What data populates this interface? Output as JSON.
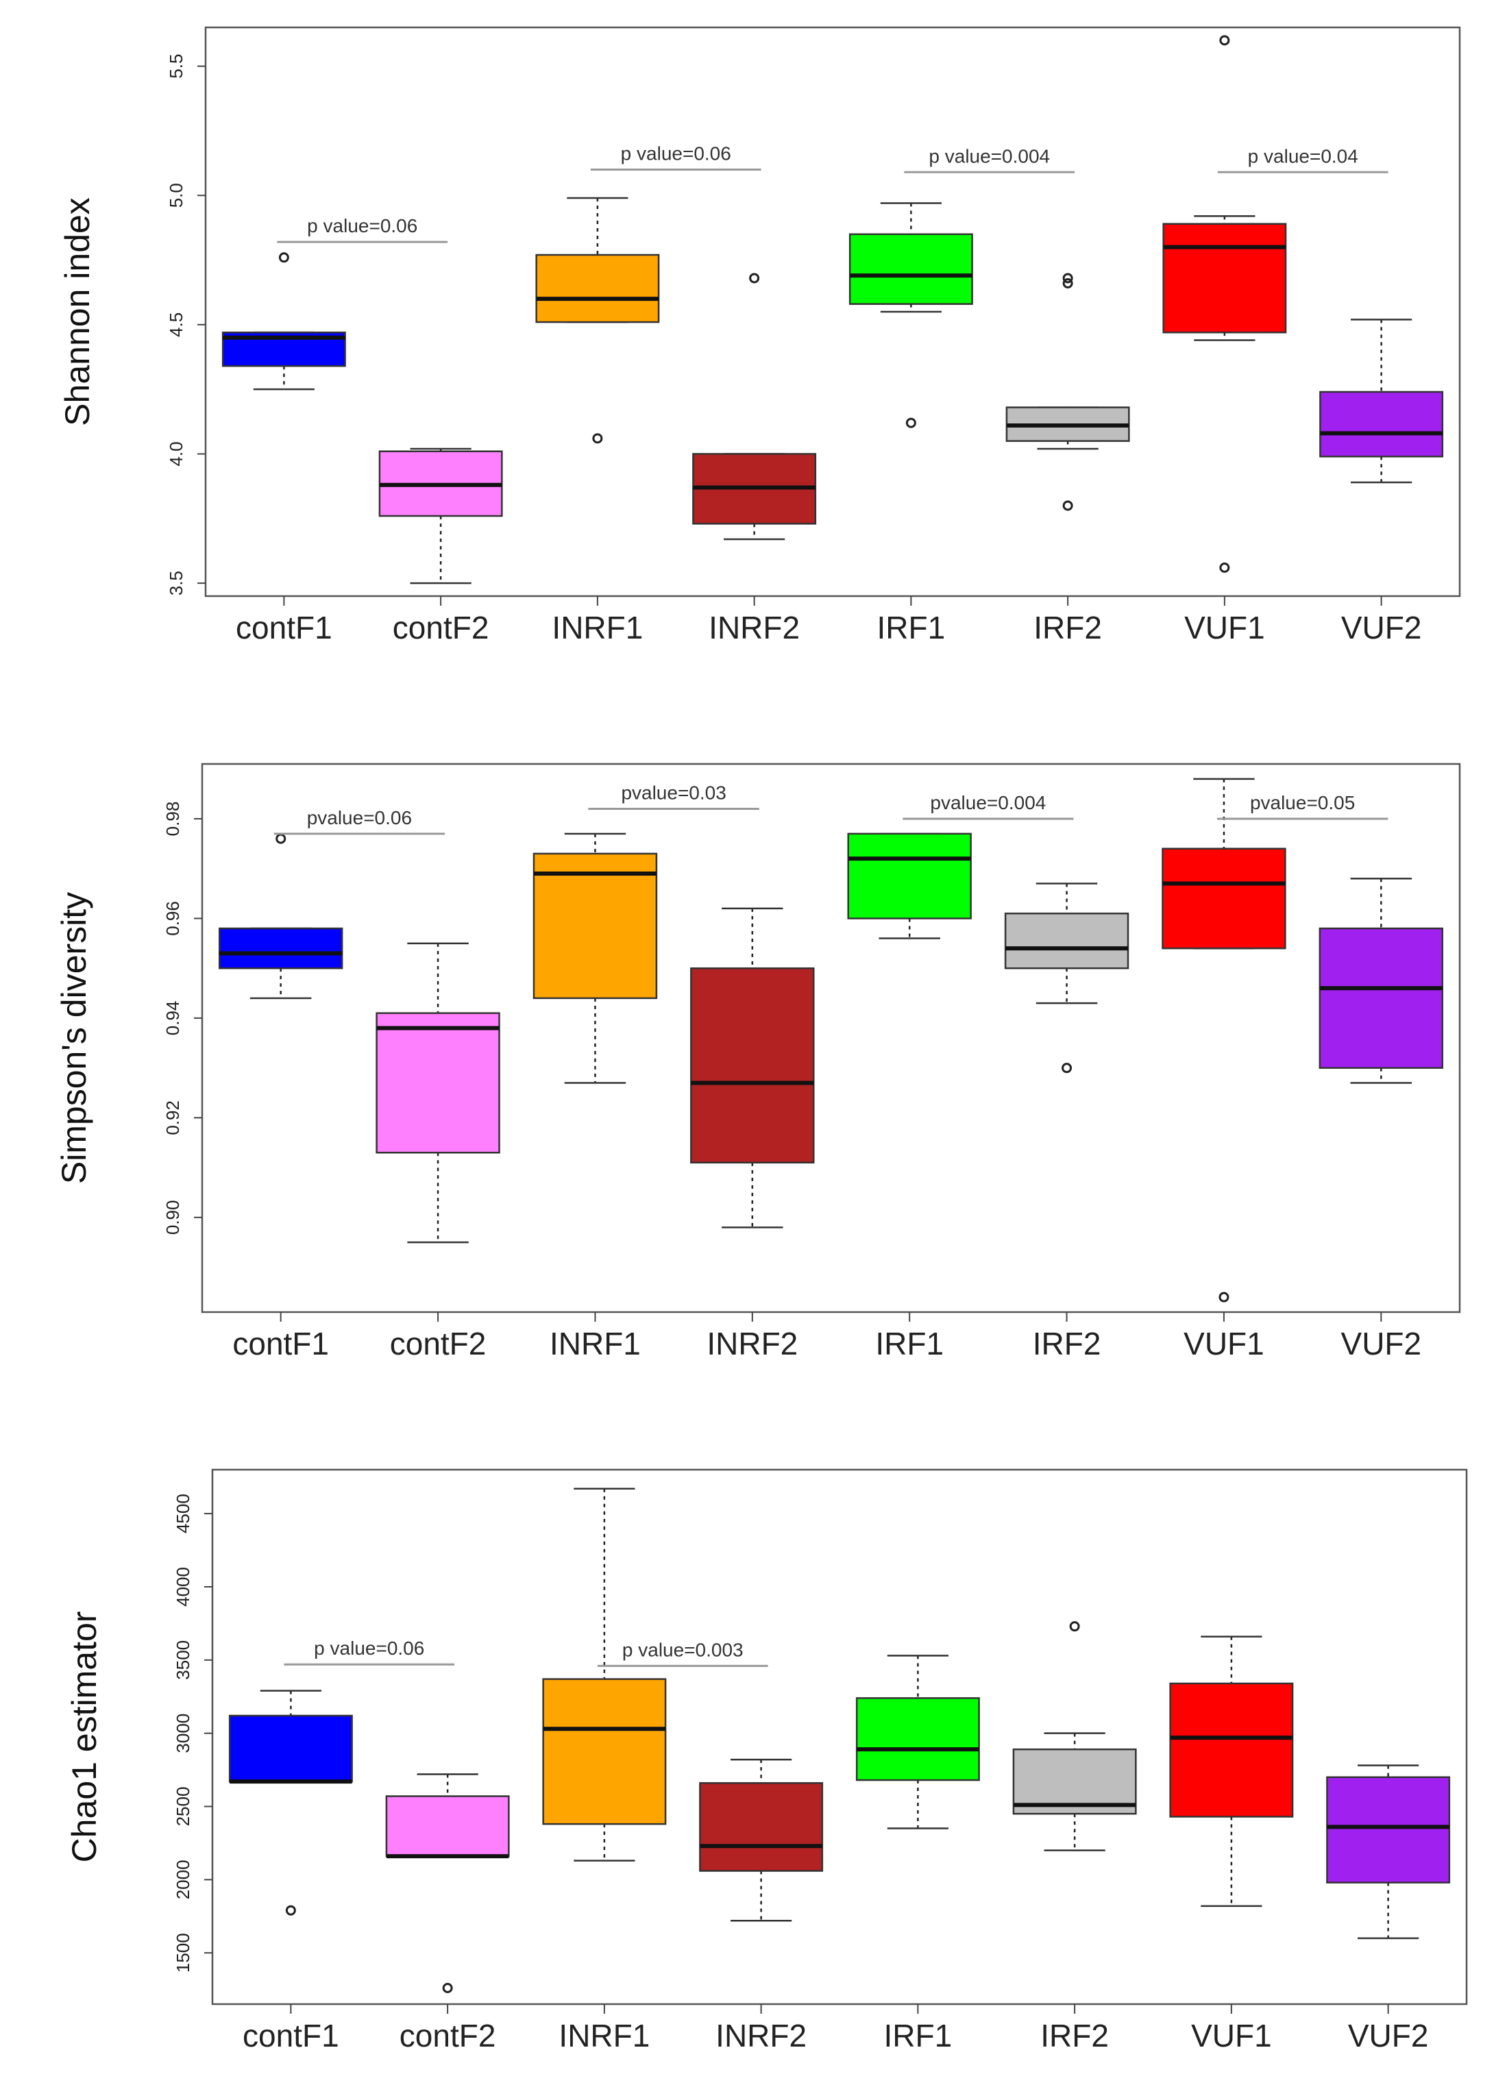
{
  "chart_data": [
    {
      "type": "box",
      "ylabel": "Shannon index",
      "ylim": [
        3.45,
        5.65
      ],
      "yticks": [
        3.5,
        4.0,
        4.5,
        5.0,
        5.5
      ],
      "ytick_labels": [
        "3.5",
        "4.0",
        "4.5",
        "5.0",
        "5.5"
      ],
      "categories": [
        "contF1",
        "contF2",
        "INRF1",
        "INRF2",
        "IRF1",
        "IRF2",
        "VUF1",
        "VUF2"
      ],
      "colors": [
        "#0000ff",
        "#ff80ff",
        "#ffa500",
        "#b22222",
        "#00ff00",
        "#bebebe",
        "#ff0000",
        "#a020f0"
      ],
      "boxes": [
        {
          "min": 4.25,
          "q1": 4.34,
          "median": 4.45,
          "q3": 4.47,
          "max": 4.47,
          "outliers": [
            4.76
          ]
        },
        {
          "min": 3.5,
          "q1": 3.76,
          "median": 3.88,
          "q3": 4.01,
          "max": 4.02,
          "outliers": []
        },
        {
          "min": 4.51,
          "q1": 4.51,
          "median": 4.6,
          "q3": 4.77,
          "max": 4.99,
          "outliers": [
            4.06
          ]
        },
        {
          "min": 3.67,
          "q1": 3.73,
          "median": 3.87,
          "q3": 4.0,
          "max": 4.0,
          "outliers": [
            4.68
          ]
        },
        {
          "min": 4.55,
          "q1": 4.58,
          "median": 4.69,
          "q3": 4.85,
          "max": 4.97,
          "outliers": [
            4.12
          ]
        },
        {
          "min": 4.02,
          "q1": 4.05,
          "median": 4.11,
          "q3": 4.18,
          "max": 4.18,
          "outliers": [
            4.68,
            4.66,
            3.8
          ]
        },
        {
          "min": 4.44,
          "q1": 4.47,
          "median": 4.8,
          "q3": 4.89,
          "max": 4.92,
          "outliers": [
            5.6,
            3.56
          ]
        },
        {
          "min": 3.89,
          "q1": 3.99,
          "median": 4.08,
          "q3": 4.24,
          "max": 4.52,
          "outliers": []
        }
      ],
      "annotations": [
        {
          "text": "p value=0.06",
          "from": 0,
          "to": 1,
          "y": 4.82
        },
        {
          "text": "p value=0.06",
          "from": 2,
          "to": 3,
          "y": 5.1
        },
        {
          "text": "p value=0.004",
          "from": 4,
          "to": 5,
          "y": 5.09
        },
        {
          "text": "p value=0.04",
          "from": 6,
          "to": 7,
          "y": 5.09
        }
      ]
    },
    {
      "type": "box",
      "ylabel": "Simpson's diversity",
      "ylim": [
        0.881,
        0.991
      ],
      "yticks": [
        0.9,
        0.92,
        0.94,
        0.96,
        0.98
      ],
      "ytick_labels": [
        "0.90",
        "0.92",
        "0.94",
        "0.96",
        "0.98"
      ],
      "categories": [
        "contF1",
        "contF2",
        "INRF1",
        "INRF2",
        "IRF1",
        "IRF2",
        "VUF1",
        "VUF2"
      ],
      "colors": [
        "#0000ff",
        "#ff80ff",
        "#ffa500",
        "#b22222",
        "#00ff00",
        "#bebebe",
        "#ff0000",
        "#a020f0"
      ],
      "boxes": [
        {
          "min": 0.944,
          "q1": 0.95,
          "median": 0.953,
          "q3": 0.958,
          "max": 0.958,
          "outliers": [
            0.976
          ]
        },
        {
          "min": 0.895,
          "q1": 0.913,
          "median": 0.938,
          "q3": 0.941,
          "max": 0.955,
          "outliers": []
        },
        {
          "min": 0.927,
          "q1": 0.944,
          "median": 0.969,
          "q3": 0.973,
          "max": 0.977,
          "outliers": []
        },
        {
          "min": 0.898,
          "q1": 0.911,
          "median": 0.927,
          "q3": 0.95,
          "max": 0.962,
          "outliers": []
        },
        {
          "min": 0.956,
          "q1": 0.96,
          "median": 0.972,
          "q3": 0.977,
          "max": 0.977,
          "outliers": []
        },
        {
          "min": 0.943,
          "q1": 0.95,
          "median": 0.954,
          "q3": 0.961,
          "max": 0.967,
          "outliers": [
            0.93
          ]
        },
        {
          "min": 0.954,
          "q1": 0.954,
          "median": 0.967,
          "q3": 0.974,
          "max": 0.988,
          "outliers": [
            0.884
          ]
        },
        {
          "min": 0.927,
          "q1": 0.93,
          "median": 0.946,
          "q3": 0.958,
          "max": 0.968,
          "outliers": []
        }
      ],
      "annotations": [
        {
          "text": "pvalue=0.06",
          "from": 0,
          "to": 1,
          "y": 0.977
        },
        {
          "text": "pvalue=0.03",
          "from": 2,
          "to": 3,
          "y": 0.982
        },
        {
          "text": "pvalue=0.004",
          "from": 4,
          "to": 5,
          "y": 0.98
        },
        {
          "text": "pvalue=0.05",
          "from": 6,
          "to": 7,
          "y": 0.98
        }
      ]
    },
    {
      "type": "box",
      "ylabel": "Chao1 estimator",
      "ylim": [
        1150,
        4800
      ],
      "yticks": [
        1500,
        2000,
        2500,
        3000,
        3500,
        4000,
        4500
      ],
      "ytick_labels": [
        "1500",
        "2000",
        "2500",
        "3000",
        "3500",
        "4000",
        "4500"
      ],
      "categories": [
        "contF1",
        "contF2",
        "INRF1",
        "INRF2",
        "IRF1",
        "IRF2",
        "VUF1",
        "VUF2"
      ],
      "colors": [
        "#0000ff",
        "#ff80ff",
        "#ffa500",
        "#b22222",
        "#00ff00",
        "#bebebe",
        "#ff0000",
        "#a020f0"
      ],
      "boxes": [
        {
          "min": 2670,
          "q1": 2670,
          "median": 2670,
          "q3": 3120,
          "max": 3290,
          "outliers": [
            1790
          ]
        },
        {
          "min": 2160,
          "q1": 2160,
          "median": 2160,
          "q3": 2570,
          "max": 2720,
          "outliers": [
            1260
          ]
        },
        {
          "min": 2130,
          "q1": 2380,
          "median": 3030,
          "q3": 3370,
          "max": 4670,
          "outliers": []
        },
        {
          "min": 1720,
          "q1": 2060,
          "median": 2230,
          "q3": 2660,
          "max": 2820,
          "outliers": []
        },
        {
          "min": 2350,
          "q1": 2680,
          "median": 2890,
          "q3": 3240,
          "max": 3530,
          "outliers": []
        },
        {
          "min": 2200,
          "q1": 2450,
          "median": 2510,
          "q3": 2890,
          "max": 3000,
          "outliers": [
            3730
          ]
        },
        {
          "min": 1820,
          "q1": 2430,
          "median": 2970,
          "q3": 3340,
          "max": 3660,
          "outliers": []
        },
        {
          "min": 1600,
          "q1": 1980,
          "median": 2360,
          "q3": 2700,
          "max": 2780,
          "outliers": []
        }
      ],
      "annotations": [
        {
          "text": "p value=0.06",
          "from": 0,
          "to": 1,
          "y": 3470
        },
        {
          "text": "p value=0.003",
          "from": 2,
          "to": 3,
          "y": 3460
        }
      ]
    }
  ]
}
